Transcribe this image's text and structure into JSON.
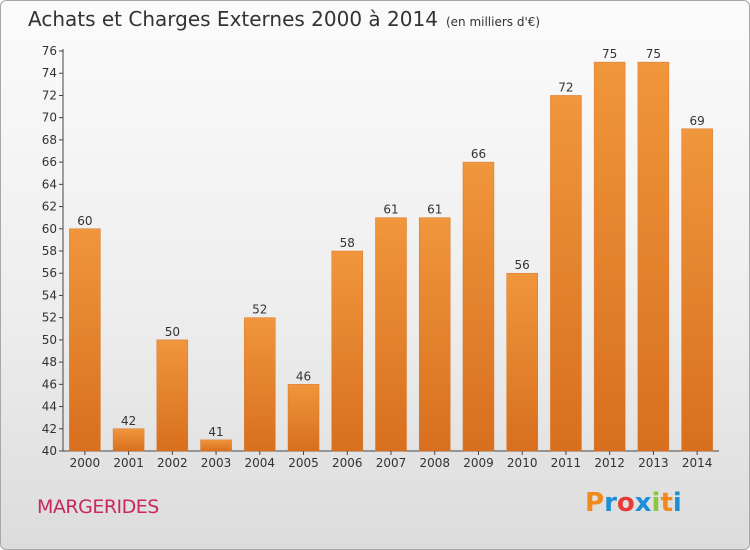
{
  "chart_data": {
    "type": "bar",
    "title": "Achats et Charges Externes 2000 à 2014",
    "subtitle": "(en milliers d'€)",
    "categories": [
      "2000",
      "2001",
      "2002",
      "2003",
      "2004",
      "2005",
      "2006",
      "2007",
      "2008",
      "2009",
      "2010",
      "2011",
      "2012",
      "2013",
      "2014"
    ],
    "values": [
      60,
      42,
      50,
      41,
      52,
      46,
      58,
      61,
      61,
      66,
      56,
      72,
      75,
      75,
      69
    ],
    "ylim": [
      40,
      76
    ],
    "yticks": [
      40,
      42,
      44,
      46,
      48,
      50,
      52,
      54,
      56,
      58,
      60,
      62,
      64,
      66,
      68,
      70,
      72,
      74,
      76
    ],
    "grid": false,
    "bar_color": "#f0963c",
    "bar_color_dark": "#d86f1e"
  },
  "footer": {
    "place": "MARGERIDES",
    "logo": "Proxiti"
  },
  "colors": {
    "place": "#c8285e",
    "logo_letters": [
      "#f08a1c",
      "#1e8fd6",
      "#e83a3a",
      "#1e8fd6",
      "#8cc63f",
      "#f08a1c",
      "#1e8fd6"
    ]
  }
}
